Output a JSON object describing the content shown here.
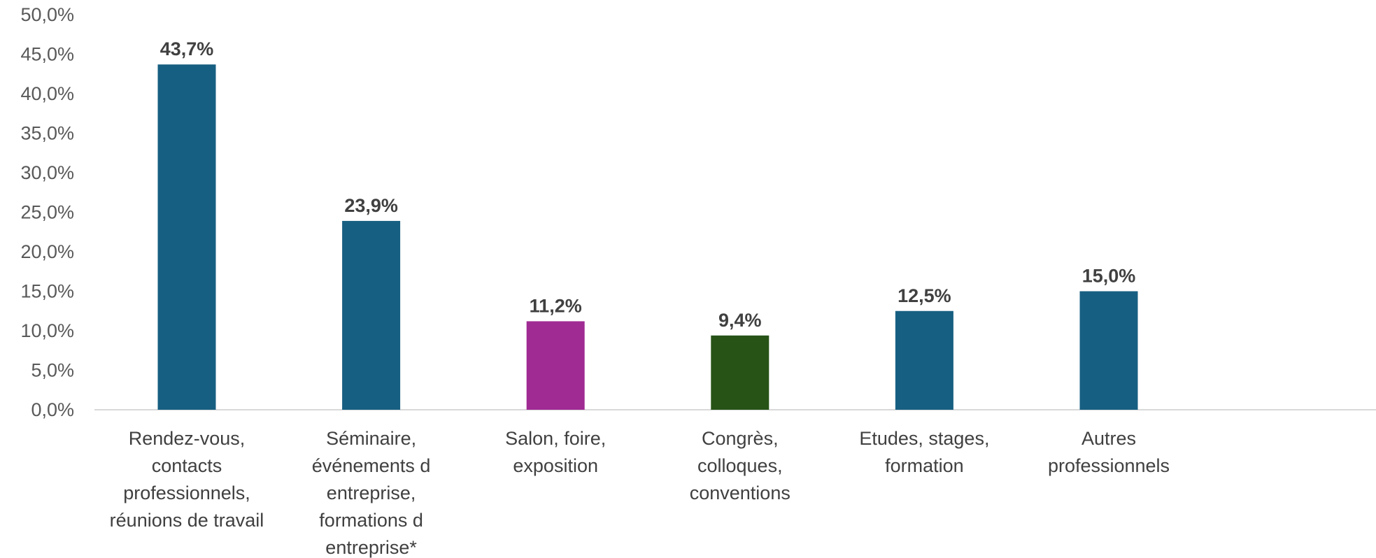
{
  "chart_data": {
    "type": "bar",
    "categories": [
      [
        "Rendez-vous,",
        "contacts",
        "professionnels,",
        "réunions de travail"
      ],
      [
        "Séminaire,",
        "événements d",
        "entreprise,",
        "formations d",
        "entreprise*"
      ],
      [
        "Salon, foire,",
        "exposition"
      ],
      [
        "Congrès,",
        "colloques,",
        "conventions"
      ],
      [
        "Etudes, stages,",
        "formation"
      ],
      [
        "Autres",
        "professionnels"
      ]
    ],
    "values": [
      43.7,
      23.9,
      11.2,
      9.4,
      12.5,
      15.0
    ],
    "data_labels": [
      "43,7%",
      "23,9%",
      "11,2%",
      "9,4%",
      "12,5%",
      "15,0%"
    ],
    "colors": [
      "#175f82",
      "#175f82",
      "#a02b93",
      "#275317",
      "#175f82",
      "#175f82"
    ],
    "ylim": [
      0,
      50
    ],
    "y_ticks": [
      0,
      5,
      10,
      15,
      20,
      25,
      30,
      35,
      40,
      45,
      50
    ],
    "y_tick_labels": [
      "0,0%",
      "5,0%",
      "10,0%",
      "15,0%",
      "20,0%",
      "25,0%",
      "30,0%",
      "35,0%",
      "40,0%",
      "45,0%",
      "50,0%"
    ],
    "grid": false,
    "title": "",
    "xlabel": "",
    "ylabel": ""
  }
}
